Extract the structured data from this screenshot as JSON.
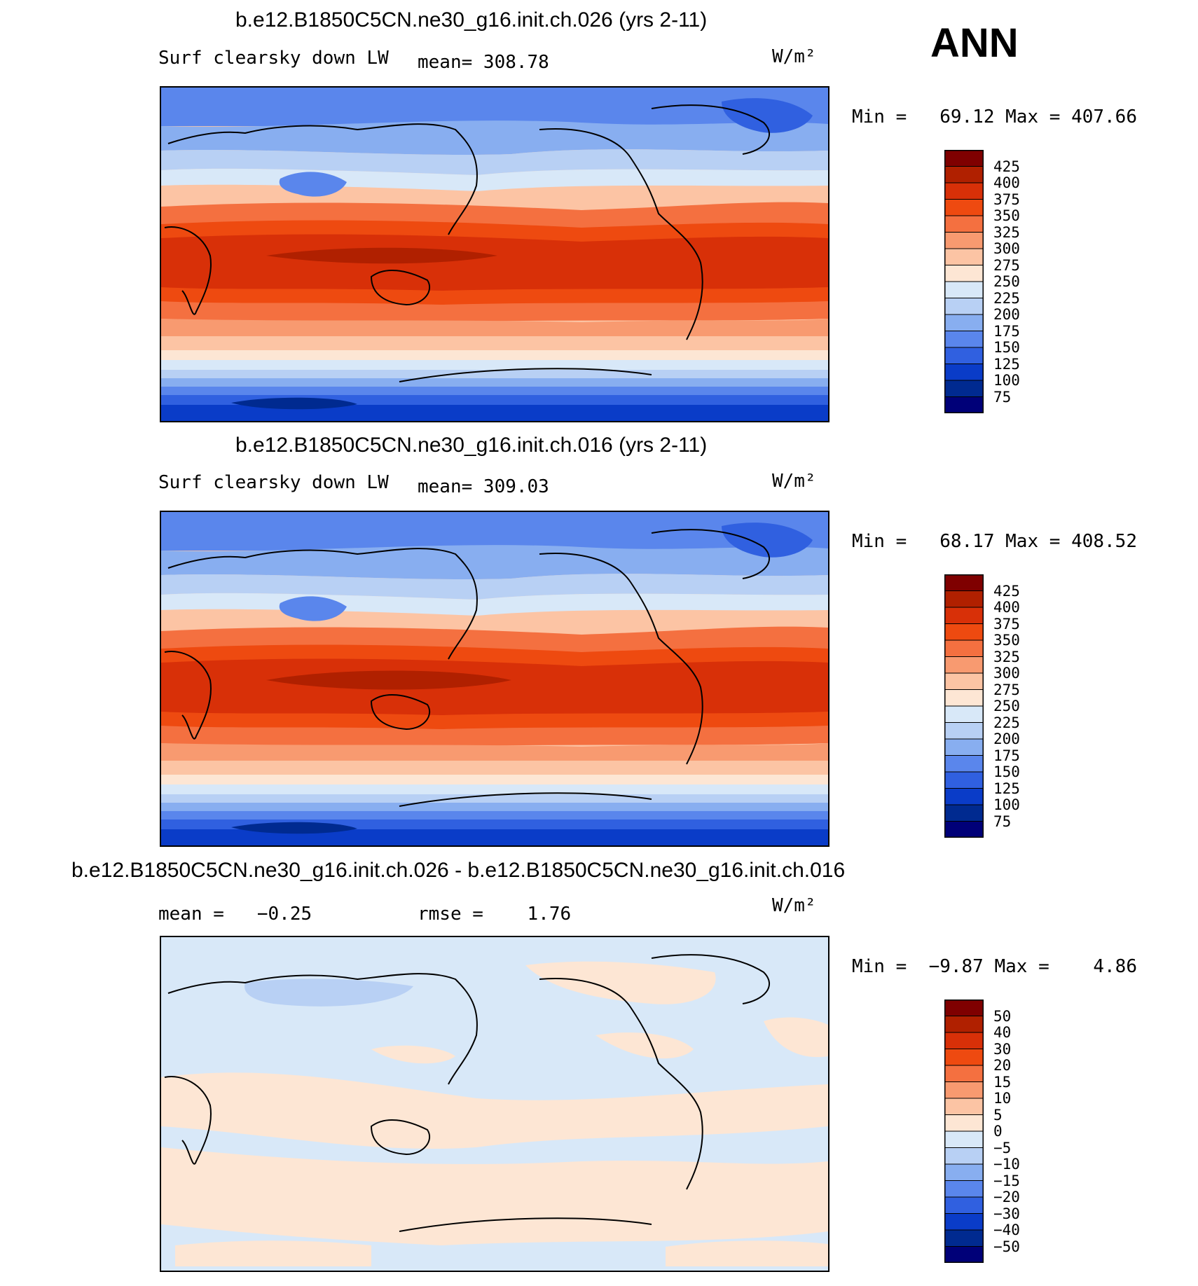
{
  "season": "ANN",
  "panels": [
    {
      "title": "b.e12.B1850C5CN.ne30_g16.init.ch.026 (yrs 2-11)",
      "left_label": "Surf clearsky down LW",
      "mid_label": "mean= 308.78",
      "units": "W/m²",
      "minmax": "Min =   69.12 Max = 407.66",
      "colorbar": {
        "labels": [
          "425",
          "400",
          "375",
          "350",
          "325",
          "300",
          "275",
          "250",
          "225",
          "200",
          "175",
          "150",
          "125",
          "100",
          "75"
        ],
        "colors": [
          "#7f0000",
          "#b02000",
          "#d83008",
          "#ee4a10",
          "#f47040",
          "#f89a70",
          "#fcc4a4",
          "#fde6d4",
          "#d8e8f8",
          "#b8d0f4",
          "#88aef0",
          "#5a86ec",
          "#3060e0",
          "#0a3cc8",
          "#002a90",
          "#000078"
        ]
      }
    },
    {
      "title": "b.e12.B1850C5CN.ne30_g16.init.ch.016 (yrs 2-11)",
      "left_label": "Surf clearsky down LW",
      "mid_label": "mean= 309.03",
      "units": "W/m²",
      "minmax": "Min =   68.17 Max = 408.52",
      "colorbar": {
        "labels": [
          "425",
          "400",
          "375",
          "350",
          "325",
          "300",
          "275",
          "250",
          "225",
          "200",
          "175",
          "150",
          "125",
          "100",
          "75"
        ],
        "colors": [
          "#7f0000",
          "#b02000",
          "#d83008",
          "#ee4a10",
          "#f47040",
          "#f89a70",
          "#fcc4a4",
          "#fde6d4",
          "#d8e8f8",
          "#b8d0f4",
          "#88aef0",
          "#5a86ec",
          "#3060e0",
          "#0a3cc8",
          "#002a90",
          "#000078"
        ]
      }
    },
    {
      "title": "b.e12.B1850C5CN.ne30_g16.init.ch.026 - b.e12.B1850C5CN.ne30_g16.init.ch.016",
      "left_label": "mean =   −0.25",
      "mid_label": "rmse =    1.76",
      "units": "W/m²",
      "minmax": "Min =  −9.87 Max =    4.86",
      "colorbar": {
        "labels": [
          "50",
          "40",
          "30",
          "20",
          "15",
          "10",
          "5",
          "0",
          "−5",
          "−10",
          "−15",
          "−20",
          "−30",
          "−40",
          "−50"
        ],
        "colors": [
          "#7f0000",
          "#b02000",
          "#d83008",
          "#ee4a10",
          "#f47040",
          "#f89a70",
          "#fcc4a4",
          "#fde6d4",
          "#d8e8f8",
          "#b8d0f4",
          "#88aef0",
          "#5a86ec",
          "#3060e0",
          "#0a3cc8",
          "#002a90",
          "#000078"
        ]
      }
    }
  ]
}
